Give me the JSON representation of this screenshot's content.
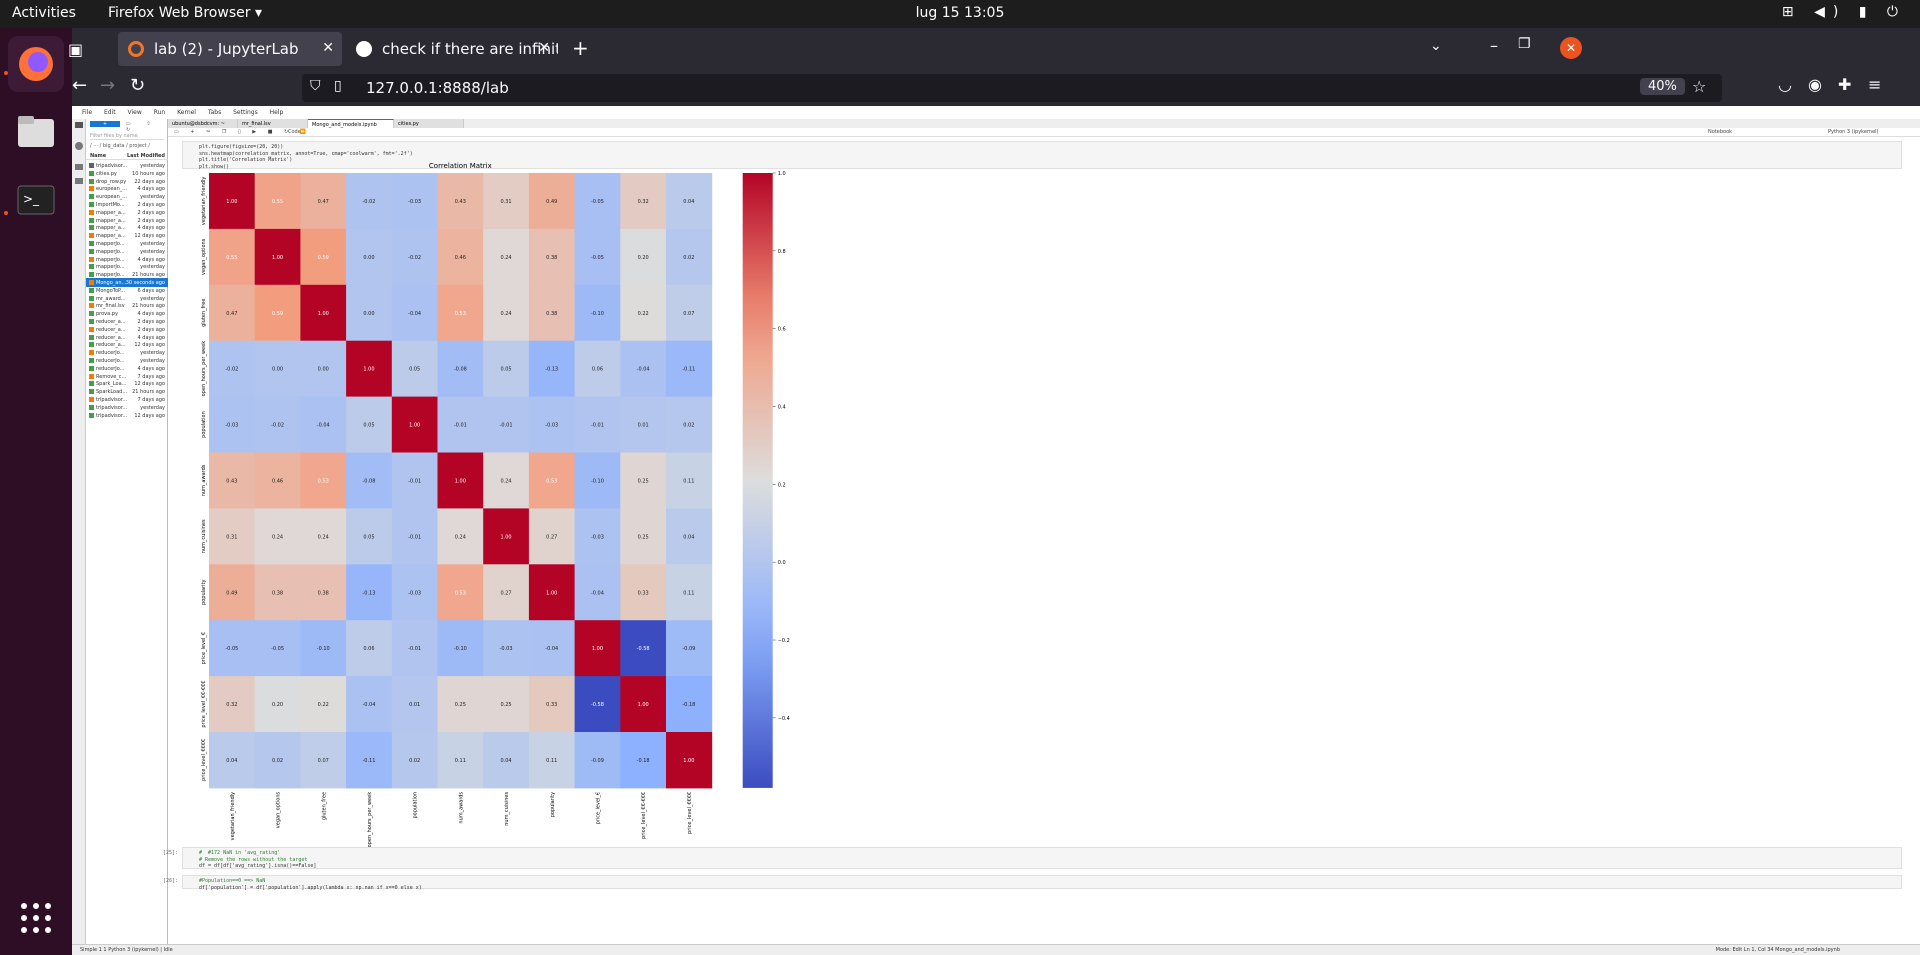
{
  "system": {
    "activities": "Activities",
    "app_menu": "Firefox Web Browser",
    "clock": "lug 15  13:05"
  },
  "browser": {
    "tabs": [
      {
        "title": "lab (2) - JupyterLab",
        "active": true
      },
      {
        "title": "check if there are infinite",
        "active": false
      }
    ],
    "url": "127.0.0.1:8888/lab",
    "zoom": "40%"
  },
  "jupyter": {
    "menu": [
      "File",
      "Edit",
      "View",
      "Run",
      "Kernel",
      "Tabs",
      "Settings",
      "Help"
    ],
    "breadcrumb": "/ ··· / big_data / project /",
    "filter_placeholder": "Filter files by name",
    "col_name": "Name",
    "col_modified": "Last Modified",
    "files": [
      {
        "name": "tripadvisor...",
        "modified": "yesterday",
        "folder": true
      },
      {
        "name": "cities.py",
        "modified": "10 hours ago"
      },
      {
        "name": "drop_row.py",
        "modified": "22 days ago"
      },
      {
        "name": "european_...",
        "modified": "4 days ago"
      },
      {
        "name": "european_...",
        "modified": "yesterday"
      },
      {
        "name": "ImportMo...",
        "modified": "2 days ago"
      },
      {
        "name": "mapper_a...",
        "modified": "2 days ago"
      },
      {
        "name": "mapper_a...",
        "modified": "2 days ago"
      },
      {
        "name": "mapper_a...",
        "modified": "4 days ago"
      },
      {
        "name": "mapper_a...",
        "modified": "12 days ago"
      },
      {
        "name": "mapperJo...",
        "modified": "yesterday"
      },
      {
        "name": "mapperJo...",
        "modified": "yesterday"
      },
      {
        "name": "mapperJo...",
        "modified": "4 days ago"
      },
      {
        "name": "mapperJo...",
        "modified": "yesterday"
      },
      {
        "name": "mapperJo...",
        "modified": "21 hours ago"
      },
      {
        "name": "Mongo_an...",
        "modified": "30 seconds ago",
        "selected": true
      },
      {
        "name": "MongoToP...",
        "modified": "6 days ago"
      },
      {
        "name": "mr_award...",
        "modified": "yesterday"
      },
      {
        "name": "mr_final.lsv",
        "modified": "21 hours ago"
      },
      {
        "name": "prova.py",
        "modified": "4 days ago"
      },
      {
        "name": "reducer_a...",
        "modified": "2 days ago"
      },
      {
        "name": "reducer_a...",
        "modified": "2 days ago"
      },
      {
        "name": "reducer_a...",
        "modified": "4 days ago"
      },
      {
        "name": "reducer_a...",
        "modified": "12 days ago"
      },
      {
        "name": "reducerJo...",
        "modified": "yesterday"
      },
      {
        "name": "reducerJo...",
        "modified": "yesterday"
      },
      {
        "name": "reducerJo...",
        "modified": "4 days ago"
      },
      {
        "name": "Remove_c...",
        "modified": "7 days ago"
      },
      {
        "name": "Spark_Loa...",
        "modified": "12 days ago"
      },
      {
        "name": "SparkLoad...",
        "modified": "21 hours ago"
      },
      {
        "name": "tripadvisor...",
        "modified": "7 days ago"
      },
      {
        "name": "tripadvisor...",
        "modified": "yesterday"
      },
      {
        "name": "tripadvisor...",
        "modified": "12 days ago"
      }
    ],
    "doc_tabs": [
      "ubuntu@dsbdcvm: ~",
      "mr_final.lsv",
      "Mongo_and_models.ipynb",
      "cities.py"
    ],
    "cell_type": "Code",
    "kernel": "Python 3 (ipykernel)",
    "notebook_label": "Notebook",
    "code_lines": [
      "plt.figure(figsize=(20, 20))",
      "sns.heatmap(correlation_matrix, annot=True, cmap='coolwarm', fmt='.2f')",
      "plt.title('Correlation Matrix')",
      "plt.show()"
    ],
    "cell2_prompt": "[25]:",
    "cell2_lines": [
      "#  #172 NaN in 'avg_rating'",
      "# Remove the rows without the target",
      "df = df[df['avg_rating'].isna()==False]"
    ],
    "cell3_prompt": "[26]:",
    "cell3_lines": [
      "#Population==0 ==> NaN",
      "df['population'] = df['population'].apply(lambda x: np.nan if x==0 else x)"
    ],
    "status_left": "Simple   1   1   Python 3 (ipykernel) | Idle",
    "status_right": "Mode: Edit   Ln 1, Col 34   Mongo_and_models.ipynb"
  },
  "chart_data": {
    "type": "heatmap",
    "title": "Correlation Matrix",
    "labels": [
      "vegetarian_friendly",
      "vegan_options",
      "gluten_free",
      "open_hours_per_week",
      "population",
      "num_awards",
      "num_cuisines",
      "popularity",
      "price_level_€",
      "price_level_€€-€€€",
      "price_level_€€€€"
    ],
    "matrix": [
      [
        1.0,
        0.55,
        0.47,
        -0.02,
        -0.03,
        0.43,
        0.31,
        0.49,
        -0.05,
        0.32,
        0.04
      ],
      [
        0.55,
        1.0,
        0.59,
        -0.0,
        -0.02,
        0.46,
        0.24,
        0.38,
        -0.05,
        0.2,
        0.02
      ],
      [
        0.47,
        0.59,
        1.0,
        -0.0,
        -0.04,
        0.53,
        0.24,
        0.38,
        -0.1,
        0.22,
        0.07
      ],
      [
        -0.02,
        -0.0,
        -0.0,
        1.0,
        0.05,
        -0.08,
        0.05,
        -0.13,
        0.06,
        -0.04,
        -0.11
      ],
      [
        -0.03,
        -0.02,
        -0.04,
        0.05,
        1.0,
        -0.01,
        -0.01,
        -0.03,
        -0.01,
        0.01,
        0.02
      ],
      [
        0.43,
        0.46,
        0.53,
        -0.08,
        -0.01,
        1.0,
        0.24,
        0.53,
        -0.1,
        0.25,
        0.11
      ],
      [
        0.31,
        0.24,
        0.24,
        0.05,
        -0.01,
        0.24,
        1.0,
        0.27,
        -0.03,
        0.25,
        0.04
      ],
      [
        0.49,
        0.38,
        0.38,
        -0.13,
        -0.03,
        0.53,
        0.27,
        1.0,
        -0.04,
        0.33,
        0.11
      ],
      [
        -0.05,
        -0.05,
        -0.1,
        0.06,
        -0.01,
        -0.1,
        -0.03,
        -0.04,
        1.0,
        -0.58,
        -0.09
      ],
      [
        0.32,
        0.2,
        0.22,
        -0.04,
        0.01,
        0.25,
        0.25,
        0.33,
        -0.58,
        1.0,
        -0.18
      ],
      [
        0.04,
        0.02,
        0.07,
        -0.11,
        0.02,
        0.11,
        0.04,
        0.11,
        -0.09,
        -0.18,
        1.0
      ]
    ],
    "colorbar_range": [
      -0.58,
      1.0
    ],
    "colorbar_ticks": [
      "1.0",
      "0.8",
      "0.6",
      "0.4",
      "0.2",
      "0.0",
      "−0.2",
      "−0.4"
    ],
    "cmap": "coolwarm"
  }
}
